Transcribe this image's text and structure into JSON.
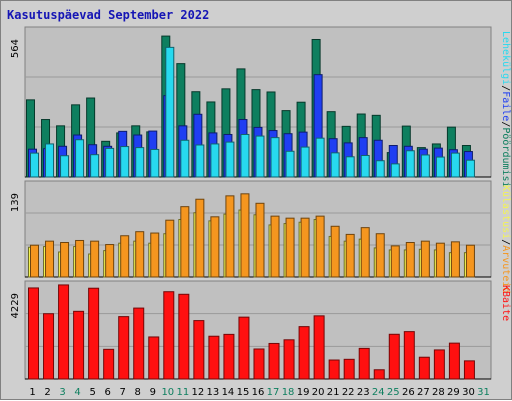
{
  "chart_data": {
    "type": "bar",
    "title": "Kasutuspäevad September 2022",
    "days": [
      "1",
      "2",
      "3",
      "4",
      "5",
      "6",
      "7",
      "8",
      "9",
      "10",
      "11",
      "12",
      "13",
      "14",
      "15",
      "16",
      "17",
      "18",
      "19",
      "20",
      "21",
      "22",
      "23",
      "24",
      "25",
      "26",
      "27",
      "28",
      "29",
      "30",
      "31"
    ],
    "weekend_days": [
      "3",
      "4",
      "10",
      "11",
      "17",
      "18",
      "24",
      "25",
      "31"
    ],
    "panels": [
      {
        "id": "requests",
        "max_label": "564",
        "ylim": [
          0,
          564
        ],
        "series": [
          {
            "name": "Pöördumisi",
            "color": "#0e7f5f",
            "values": [
              294,
              219,
              195,
              275,
              301,
              136,
              168,
              195,
              172,
              537,
              432,
              325,
              286,
              336,
              412,
              333,
              324,
              253,
              285,
              524,
              249,
              193,
              240,
              235,
              93,
              194,
              112,
              126,
              190,
              120,
              0
            ]
          },
          {
            "name": "Faile",
            "color": "#1f3ef2",
            "values": [
              106,
              108,
              117,
              160,
              123,
              117,
              174,
              160,
              175,
              310,
              195,
              239,
              168,
              162,
              219,
              189,
              177,
              165,
              171,
              390,
              146,
              130,
              150,
              140,
              120,
              117,
              106,
              110,
              104,
              97,
              0
            ]
          },
          {
            "name": "Lehekülgi",
            "color": "#27d9ef",
            "values": [
              91,
              126,
              81,
              142,
              85,
              109,
              116,
              112,
              105,
              494,
              140,
              122,
              126,
              133,
              162,
              156,
              150,
              98,
              114,
              148,
              92,
              77,
              82,
              62,
              50,
              100,
              84,
              76,
              91,
              64,
              0
            ]
          }
        ],
        "legend": [
          "Pöördumisi",
          "Faile",
          "Lehekülgi"
        ],
        "legend_colors": [
          "#0e7f5f",
          "#1f3ef2",
          "#27d9ef"
        ]
      },
      {
        "id": "visits",
        "max_label": "139",
        "ylim": [
          0,
          139
        ],
        "series": [
          {
            "name": "Külastusi",
            "color": "#f4f453",
            "values": [
              44,
              45,
              37,
              45,
              34,
              39,
              50,
              53,
              50,
              64,
              85,
              95,
              83,
              93,
              99,
              92,
              77,
              79,
              81,
              85,
              60,
              53,
              56,
              43,
              40,
              40,
              41,
              40,
              36,
              36,
              0
            ]
          },
          {
            "name": "Arvuteid",
            "color": "#f5961f",
            "values": [
              47,
              53,
              51,
              54,
              53,
              48,
              61,
              67,
              65,
              84,
              104,
              115,
              89,
              120,
              123,
              109,
              90,
              87,
              87,
              90,
              75,
              63,
              73,
              64,
              46,
              51,
              53,
              50,
              52,
              47,
              0
            ]
          }
        ],
        "legend": [
          "Arvuteid",
          "Külastusi"
        ],
        "legend_colors": [
          "#f5961f",
          "#f4f453"
        ]
      },
      {
        "id": "kbytes",
        "max_label": "4229",
        "ylim": [
          0,
          4229
        ],
        "series": [
          {
            "name": "KBaite",
            "color": "#ff1010",
            "values": [
              4011,
              2876,
              4144,
              2981,
              3999,
              1307,
              2748,
              3124,
              1852,
              3845,
              3732,
              2573,
              1884,
              1966,
              2725,
              1322,
              1566,
              1727,
              2307,
              2782,
              836,
              867,
              1349,
              407,
              1970,
              2087,
              959,
              1281,
              1580,
              799,
              0
            ]
          }
        ],
        "legend": [
          "KBaite"
        ],
        "legend_colors": [
          "#ff1010"
        ]
      }
    ]
  },
  "colors": {
    "plot_bg": "#c0c0c0",
    "panel_bg": "#cfcfcf",
    "title": "#1515b5",
    "weekday_text": "#000000",
    "weekend_text": "#0e7f5f",
    "legend_separator": "#000000"
  }
}
